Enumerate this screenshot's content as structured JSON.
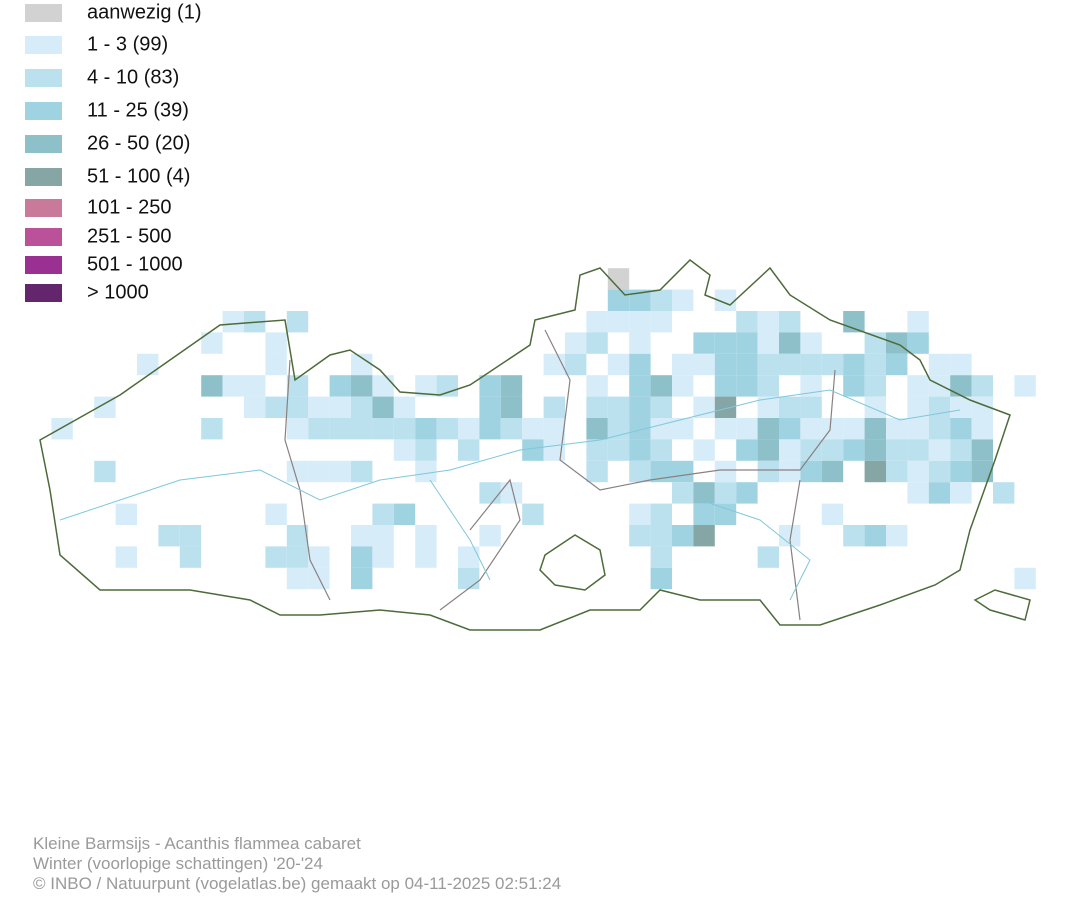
{
  "legend": [
    {
      "label": "aanwezig (1)",
      "color": "#d2d2d2"
    },
    {
      "label": "1 - 3 (99)",
      "color": "#d6ecf8"
    },
    {
      "label": "4 - 10 (83)",
      "color": "#bbe1ee"
    },
    {
      "label": "11 - 25 (39)",
      "color": "#a0d3e2"
    },
    {
      "label": "26 - 50 (20)",
      "color": "#8dc0c8"
    },
    {
      "label": "51 - 100 (4)",
      "color": "#86a6a6"
    },
    {
      "label": "101 - 250",
      "color": "#c97a9b"
    },
    {
      "label": "251 - 500",
      "color": "#bb5199"
    },
    {
      "label": "501 - 1000",
      "color": "#9a3192"
    },
    {
      "label": "> 1000",
      "color": "#63256c"
    }
  ],
  "footer": {
    "line1": "Kleine Barmsijs - Acanthis flammea cabaret",
    "line2": "Winter (voorlopige schattingen) '20-'24",
    "line3": "© INBO / Natuurpunt (vogelatlas.be) gemaakt op 04-11-2025 02:51:24"
  }
}
